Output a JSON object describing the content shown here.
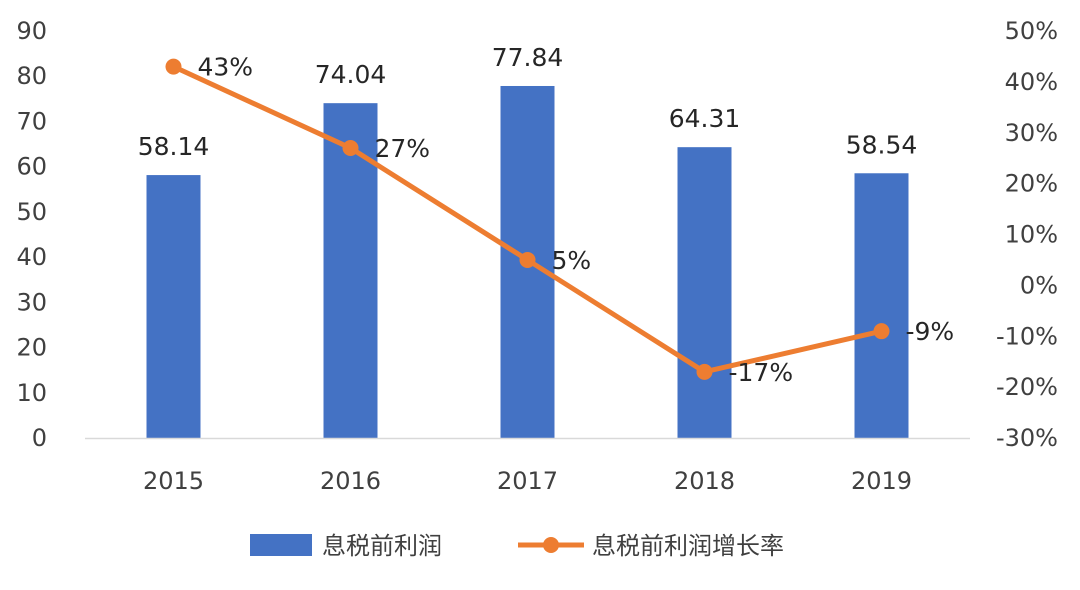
{
  "chart_data": {
    "type": "bar",
    "categories": [
      "2015",
      "2016",
      "2017",
      "2018",
      "2019"
    ],
    "series": [
      {
        "name": "息税前利润",
        "type": "bar",
        "axis": "left",
        "values": [
          58.14,
          74.04,
          77.84,
          64.31,
          58.54
        ],
        "labels": [
          "58.14",
          "74.04",
          "77.84",
          "64.31",
          "58.54"
        ],
        "color": "#4472C4"
      },
      {
        "name": "息税前利润增长率",
        "type": "line",
        "axis": "right",
        "values": [
          43,
          27,
          5,
          -17,
          -9
        ],
        "labels": [
          "43%",
          "27%",
          "5%",
          "-17%",
          "-9%"
        ],
        "color": "#ED7D31"
      }
    ],
    "y_left": {
      "ylim": [
        0,
        90
      ],
      "ticks": [
        "0",
        "10",
        "20",
        "30",
        "40",
        "50",
        "60",
        "70",
        "80",
        "90"
      ]
    },
    "y_right": {
      "ylim": [
        -30,
        50
      ],
      "ticks": [
        "-30%",
        "-20%",
        "-10%",
        "0%",
        "10%",
        "20%",
        "30%",
        "40%",
        "50%"
      ]
    },
    "grid": false,
    "legend_position": "bottom"
  }
}
